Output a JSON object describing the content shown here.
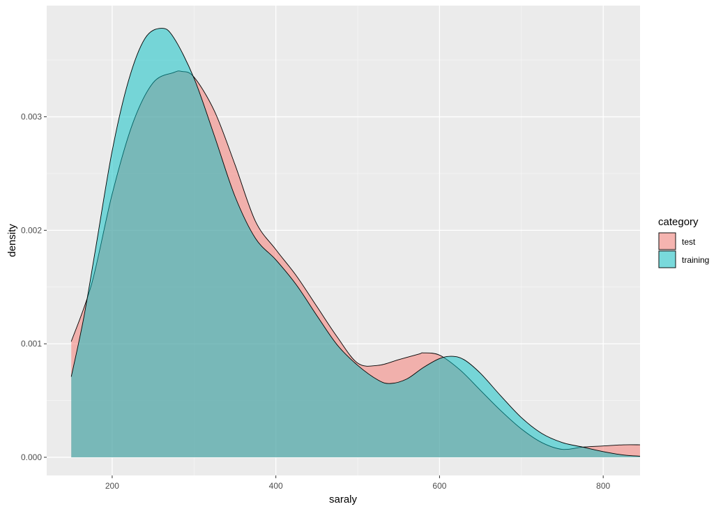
{
  "chart_data": {
    "type": "area",
    "xlabel": "saraly",
    "ylabel": "density",
    "xlim": [
      120,
      845
    ],
    "ylim": [
      -0.00016,
      0.00398
    ],
    "x_ticks": [
      200,
      400,
      600,
      800
    ],
    "x_tick_labels": [
      "200",
      "400",
      "600",
      "800"
    ],
    "y_ticks": [
      0.0,
      0.001,
      0.002,
      0.003
    ],
    "y_tick_labels": [
      "0.000",
      "0.001",
      "0.002",
      "0.003"
    ],
    "grid": true,
    "legend_position": "right",
    "legend_title": "category",
    "colors": {
      "panel_bg": "#ebebeb",
      "grid_major": "#ffffff",
      "grid_minor": "#f5f5f5",
      "test": "#f8766d",
      "training": "#00bfc4",
      "fill_alpha": 0.5,
      "outline": "#000000"
    },
    "series": [
      {
        "name": "test",
        "x": [
          150,
          175,
          200,
          225,
          250,
          275,
          285,
          300,
          325,
          350,
          375,
          400,
          425,
          450,
          475,
          500,
          525,
          550,
          575,
          580,
          600,
          625,
          650,
          675,
          700,
          725,
          750,
          775,
          800,
          825,
          845
        ],
        "values": [
          0.00102,
          0.00153,
          0.00232,
          0.00294,
          0.0033,
          0.00339,
          0.0034,
          0.00335,
          0.00305,
          0.00258,
          0.00208,
          0.00183,
          0.0016,
          0.00133,
          0.00106,
          0.00083,
          0.00081,
          0.00086,
          0.00091,
          0.00092,
          0.0009,
          0.00077,
          0.00059,
          0.00041,
          0.00025,
          0.00013,
          7e-05,
          9e-05,
          0.0001,
          0.00011,
          0.00011
        ]
      },
      {
        "name": "training",
        "x": [
          150,
          165,
          180,
          200,
          220,
          240,
          260,
          275,
          300,
          325,
          350,
          375,
          400,
          425,
          450,
          475,
          500,
          525,
          540,
          560,
          580,
          600,
          615,
          630,
          650,
          675,
          700,
          725,
          750,
          775,
          800,
          825,
          845
        ],
        "values": [
          0.00071,
          0.00122,
          0.00185,
          0.0027,
          0.00332,
          0.00369,
          0.00378,
          0.0037,
          0.00334,
          0.00283,
          0.0023,
          0.00193,
          0.00174,
          0.00152,
          0.00125,
          0.00099,
          0.00081,
          0.00068,
          0.00065,
          0.00069,
          0.00079,
          0.00087,
          0.00089,
          0.00086,
          0.00074,
          0.00054,
          0.00035,
          0.00021,
          0.00013,
          9e-05,
          5e-05,
          2e-05,
          1e-05
        ]
      }
    ]
  }
}
